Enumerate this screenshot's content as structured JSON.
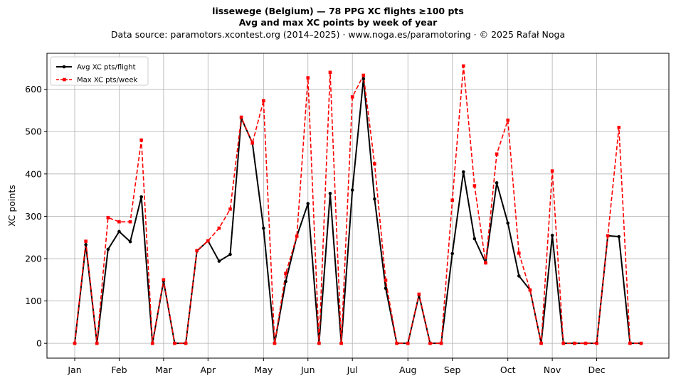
{
  "header": {
    "title": "lissewege (Belgium)  —  78 PPG XC flights ≥100 pts",
    "subtitle": "Avg and max XC points by week of year",
    "source": "Data source: paramotors.xcontest.org (2014–2025)  ·  www.noga.es/paramotoring  ·  © 2025 Rafał Noga"
  },
  "colors": {
    "avg": "#000000",
    "max": "#ff0000",
    "grid": "#b0b0b0"
  },
  "chart_data": {
    "type": "line",
    "title": "lissewege (Belgium)  —  78 PPG XC flights ≥100 pts",
    "subtitle": "Avg and max XC points by week of year",
    "ylabel": "XC points",
    "xlabel": "",
    "xlim": [
      -2.5,
      53.5
    ],
    "ylim": [
      -35,
      685
    ],
    "grid": true,
    "legend": "top-left",
    "month_ticks": [
      {
        "label": "Jan",
        "x": 0
      },
      {
        "label": "Feb",
        "x": 4
      },
      {
        "label": "Mar",
        "x": 8
      },
      {
        "label": "Apr",
        "x": 12
      },
      {
        "label": "May",
        "x": 17
      },
      {
        "label": "Jun",
        "x": 21
      },
      {
        "label": "Jul",
        "x": 25
      },
      {
        "label": "Aug",
        "x": 30
      },
      {
        "label": "Sep",
        "x": 34
      },
      {
        "label": "Oct",
        "x": 39
      },
      {
        "label": "Nov",
        "x": 43
      },
      {
        "label": "Dec",
        "x": 47
      }
    ],
    "yticks": [
      0,
      100,
      200,
      300,
      400,
      500,
      600
    ],
    "x": [
      0,
      1,
      2,
      3,
      4,
      5,
      6,
      7,
      8,
      9,
      10,
      11,
      12,
      13,
      14,
      15,
      16,
      17,
      18,
      19,
      20,
      21,
      22,
      23,
      24,
      25,
      26,
      27,
      28,
      29,
      30,
      31,
      32,
      33,
      34,
      35,
      36,
      37,
      38,
      39,
      40,
      41,
      42,
      43,
      44,
      45,
      46,
      47,
      48,
      49,
      50,
      51
    ],
    "series": [
      {
        "name": "Avg XC pts/flight",
        "style": "solid",
        "marker": "circle",
        "values": [
          0,
          233,
          0,
          222,
          264,
          240,
          346,
          0,
          147,
          0,
          0,
          218,
          242,
          194,
          210,
          532,
          473,
          272,
          0,
          146,
          253,
          330,
          0,
          354,
          0,
          362,
          625,
          341,
          130,
          0,
          0,
          114,
          0,
          0,
          212,
          405,
          247,
          190,
          379,
          284,
          159,
          126,
          0,
          255,
          0,
          0,
          0,
          0,
          254,
          252,
          0,
          0
        ]
      },
      {
        "name": "Max XC pts/week",
        "style": "dashed",
        "marker": "square",
        "values": [
          0,
          241,
          0,
          297,
          287,
          287,
          480,
          0,
          150,
          0,
          0,
          219,
          242,
          272,
          317,
          534,
          473,
          573,
          0,
          165,
          253,
          627,
          0,
          640,
          0,
          582,
          633,
          424,
          149,
          0,
          0,
          116,
          0,
          0,
          338,
          655,
          372,
          190,
          447,
          527,
          213,
          126,
          0,
          407,
          0,
          0,
          0,
          0,
          254,
          510,
          0,
          0
        ]
      }
    ]
  }
}
